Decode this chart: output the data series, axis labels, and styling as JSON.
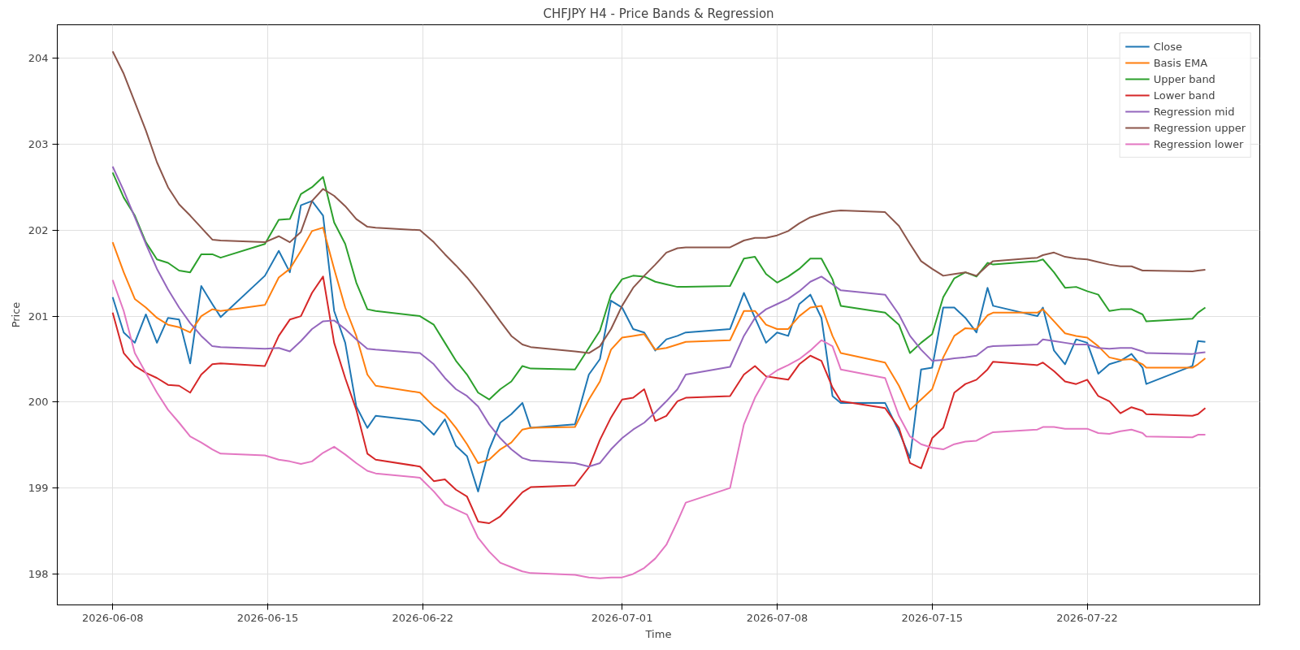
{
  "chart_data": {
    "type": "line",
    "title": "CHFJPY H4 - Price Bands & Regression",
    "xlabel": "Time",
    "ylabel": "Price",
    "x": [
      "2026-06-08T00:00",
      "2026-06-08T12:00",
      "2026-06-09T00:00",
      "2026-06-09T12:00",
      "2026-06-10T00:00",
      "2026-06-10T12:00",
      "2026-06-11T00:00",
      "2026-06-11T12:00",
      "2026-06-12T00:00",
      "2026-06-12T12:00",
      "2026-06-12T21:00",
      "2026-06-14T21:00",
      "2026-06-15T12:00",
      "2026-06-16T00:00",
      "2026-06-16T12:00",
      "2026-06-17T00:00",
      "2026-06-17T12:00",
      "2026-06-18T00:00",
      "2026-06-18T12:00",
      "2026-06-19T00:00",
      "2026-06-19T12:00",
      "2026-06-19T21:00",
      "2026-06-21T21:00",
      "2026-06-22T12:00",
      "2026-06-23T00:00",
      "2026-06-23T12:00",
      "2026-06-24T00:00",
      "2026-06-24T12:00",
      "2026-06-25T00:00",
      "2026-06-25T12:00",
      "2026-06-26T00:00",
      "2026-06-26T12:00",
      "2026-06-26T21:00",
      "2026-06-28T21:00",
      "2026-06-29T12:00",
      "2026-06-30T00:00",
      "2026-06-30T12:00",
      "2026-07-01T00:00",
      "2026-07-01T12:00",
      "2026-07-02T00:00",
      "2026-07-02T12:00",
      "2026-07-03T00:00",
      "2026-07-03T12:00",
      "2026-07-03T21:00",
      "2026-07-05T21:00",
      "2026-07-06T12:00",
      "2026-07-07T00:00",
      "2026-07-07T12:00",
      "2026-07-08T00:00",
      "2026-07-08T12:00",
      "2026-07-09T00:00",
      "2026-07-09T12:00",
      "2026-07-10T00:00",
      "2026-07-10T12:00",
      "2026-07-10T21:00",
      "2026-07-12T21:00",
      "2026-07-13T12:00",
      "2026-07-14T00:00",
      "2026-07-14T12:00",
      "2026-07-15T00:00",
      "2026-07-15T12:00",
      "2026-07-16T00:00",
      "2026-07-16T12:00",
      "2026-07-17T00:00",
      "2026-07-17T12:00",
      "2026-07-17T18:00",
      "2026-07-19T18:00",
      "2026-07-20T00:00",
      "2026-07-20T12:00",
      "2026-07-21T00:00",
      "2026-07-21T12:00",
      "2026-07-22T00:00",
      "2026-07-22T12:00",
      "2026-07-23T00:00",
      "2026-07-23T12:00",
      "2026-07-24T00:00",
      "2026-07-24T12:00",
      "2026-07-24T16:00",
      "2026-07-26T18:00",
      "2026-07-27T00:00",
      "2026-07-27T08:00"
    ],
    "series": [
      {
        "name": "Close",
        "color": "#1f77b4",
        "values": [
          201.22,
          200.81,
          200.69,
          201.02,
          200.69,
          200.98,
          200.96,
          200.45,
          201.35,
          201.14,
          200.99,
          201.47,
          201.76,
          201.51,
          202.29,
          202.34,
          202.17,
          201.06,
          200.69,
          199.95,
          199.7,
          199.84,
          199.78,
          199.62,
          199.8,
          199.49,
          199.37,
          198.96,
          199.45,
          199.76,
          199.86,
          199.99,
          199.7,
          199.74,
          200.32,
          200.5,
          201.18,
          201.1,
          200.85,
          200.81,
          200.6,
          200.73,
          200.77,
          200.81,
          200.85,
          201.27,
          200.98,
          200.69,
          200.81,
          200.77,
          201.14,
          201.25,
          200.98,
          200.07,
          199.99,
          199.99,
          199.66,
          199.35,
          200.38,
          200.4,
          201.1,
          201.1,
          200.98,
          200.81,
          201.33,
          201.12,
          201.0,
          201.1,
          200.6,
          200.44,
          200.73,
          200.69,
          200.33,
          200.44,
          200.48,
          200.56,
          200.4,
          200.21,
          200.42,
          200.71,
          200.7
        ]
      },
      {
        "name": "Basis EMA",
        "color": "#ff7f0e",
        "values": [
          201.86,
          201.51,
          201.2,
          201.1,
          200.98,
          200.9,
          200.87,
          200.81,
          201.0,
          201.08,
          201.06,
          201.13,
          201.45,
          201.55,
          201.76,
          201.99,
          202.03,
          201.55,
          201.1,
          200.77,
          200.32,
          200.19,
          200.11,
          199.95,
          199.86,
          199.7,
          199.51,
          199.29,
          199.33,
          199.45,
          199.53,
          199.68,
          199.7,
          199.71,
          200.03,
          200.24,
          200.61,
          200.75,
          200.77,
          200.79,
          200.61,
          200.63,
          200.67,
          200.7,
          200.72,
          201.06,
          201.06,
          200.9,
          200.85,
          200.85,
          201.0,
          201.1,
          201.12,
          200.77,
          200.57,
          200.46,
          200.19,
          199.91,
          200.03,
          200.15,
          200.52,
          200.77,
          200.86,
          200.85,
          201.01,
          201.04,
          201.04,
          201.08,
          200.94,
          200.8,
          200.77,
          200.75,
          200.65,
          200.52,
          200.49,
          200.5,
          200.44,
          200.4,
          200.4,
          200.44,
          200.51
        ]
      },
      {
        "name": "Upper band",
        "color": "#2ca02c",
        "values": [
          202.67,
          202.38,
          202.17,
          201.86,
          201.66,
          201.62,
          201.53,
          201.51,
          201.72,
          201.72,
          201.68,
          201.84,
          202.12,
          202.13,
          202.42,
          202.5,
          202.62,
          202.09,
          201.84,
          201.39,
          201.08,
          201.06,
          201.0,
          200.9,
          200.69,
          200.48,
          200.32,
          200.11,
          200.03,
          200.15,
          200.24,
          200.42,
          200.39,
          200.38,
          200.63,
          200.83,
          201.25,
          201.43,
          201.47,
          201.46,
          201.4,
          201.37,
          201.34,
          201.34,
          201.35,
          201.67,
          201.69,
          201.49,
          201.39,
          201.46,
          201.55,
          201.67,
          201.67,
          201.43,
          201.12,
          201.04,
          200.9,
          200.57,
          200.69,
          200.79,
          201.22,
          201.44,
          201.51,
          201.46,
          201.62,
          201.6,
          201.64,
          201.66,
          201.51,
          201.33,
          201.34,
          201.29,
          201.25,
          201.06,
          201.08,
          201.08,
          201.02,
          200.94,
          200.97,
          201.04,
          201.1
        ]
      },
      {
        "name": "Lower band",
        "color": "#d62728",
        "values": [
          201.04,
          200.57,
          200.42,
          200.34,
          200.28,
          200.2,
          200.19,
          200.11,
          200.32,
          200.44,
          200.45,
          200.42,
          200.77,
          200.96,
          201.0,
          201.27,
          201.46,
          200.69,
          200.28,
          199.91,
          199.4,
          199.33,
          199.25,
          199.08,
          199.1,
          198.98,
          198.9,
          198.61,
          198.59,
          198.67,
          198.81,
          198.95,
          199.01,
          199.03,
          199.24,
          199.56,
          199.82,
          200.03,
          200.05,
          200.15,
          199.78,
          199.84,
          200.01,
          200.05,
          200.07,
          200.32,
          200.42,
          200.3,
          200.28,
          200.26,
          200.44,
          200.54,
          200.48,
          200.17,
          200.01,
          199.93,
          199.7,
          199.29,
          199.23,
          199.58,
          199.7,
          200.11,
          200.21,
          200.26,
          200.38,
          200.47,
          200.43,
          200.46,
          200.36,
          200.24,
          200.21,
          200.26,
          200.07,
          200.01,
          199.87,
          199.94,
          199.9,
          199.86,
          199.84,
          199.86,
          199.93
        ]
      },
      {
        "name": "Regression mid",
        "color": "#9467bd",
        "values": [
          202.74,
          202.46,
          202.15,
          201.84,
          201.55,
          201.31,
          201.1,
          200.92,
          200.77,
          200.65,
          200.64,
          200.62,
          200.63,
          200.59,
          200.71,
          200.85,
          200.94,
          200.95,
          200.85,
          200.73,
          200.62,
          200.61,
          200.57,
          200.44,
          200.28,
          200.15,
          200.07,
          199.95,
          199.74,
          199.58,
          199.45,
          199.35,
          199.32,
          199.29,
          199.25,
          199.29,
          199.45,
          199.58,
          199.68,
          199.76,
          199.88,
          200.01,
          200.15,
          200.32,
          200.41,
          200.77,
          200.98,
          201.08,
          201.14,
          201.2,
          201.29,
          201.4,
          201.46,
          201.37,
          201.3,
          201.25,
          201.02,
          200.77,
          200.61,
          200.48,
          200.49,
          200.51,
          200.52,
          200.54,
          200.64,
          200.65,
          200.67,
          200.73,
          200.71,
          200.69,
          200.67,
          200.67,
          200.63,
          200.62,
          200.63,
          200.63,
          200.59,
          200.57,
          200.56,
          200.57,
          200.58
        ]
      },
      {
        "name": "Regression upper",
        "color": "#8c564b",
        "values": [
          204.08,
          203.82,
          203.49,
          203.16,
          202.79,
          202.5,
          202.3,
          202.17,
          202.03,
          201.89,
          201.88,
          201.86,
          201.93,
          201.86,
          201.98,
          202.34,
          202.48,
          202.4,
          202.28,
          202.13,
          202.04,
          202.03,
          202.0,
          201.86,
          201.72,
          201.59,
          201.45,
          201.29,
          201.12,
          200.94,
          200.77,
          200.67,
          200.64,
          200.59,
          200.57,
          200.65,
          200.85,
          201.12,
          201.33,
          201.47,
          201.6,
          201.74,
          201.79,
          201.8,
          201.8,
          201.88,
          201.91,
          201.91,
          201.94,
          201.99,
          202.08,
          202.15,
          202.19,
          202.22,
          202.23,
          202.21,
          202.05,
          201.84,
          201.64,
          201.55,
          201.47,
          201.49,
          201.51,
          201.47,
          201.59,
          201.64,
          201.68,
          201.71,
          201.74,
          201.69,
          201.67,
          201.66,
          201.63,
          201.6,
          201.58,
          201.58,
          201.53,
          201.53,
          201.52,
          201.53,
          201.54
        ]
      },
      {
        "name": "Regression lower",
        "color": "#e377c2",
        "values": [
          201.42,
          201.06,
          200.57,
          200.34,
          200.11,
          199.91,
          199.76,
          199.6,
          199.53,
          199.45,
          199.4,
          199.38,
          199.33,
          199.31,
          199.28,
          199.31,
          199.41,
          199.48,
          199.39,
          199.29,
          199.2,
          199.17,
          199.12,
          198.96,
          198.81,
          198.75,
          198.69,
          198.42,
          198.26,
          198.13,
          198.08,
          198.03,
          198.01,
          197.99,
          197.96,
          197.95,
          197.96,
          197.96,
          198.0,
          198.07,
          198.18,
          198.34,
          198.61,
          198.83,
          199.0,
          199.74,
          200.05,
          200.28,
          200.37,
          200.43,
          200.5,
          200.6,
          200.72,
          200.65,
          200.38,
          200.28,
          199.84,
          199.6,
          199.51,
          199.47,
          199.45,
          199.51,
          199.54,
          199.55,
          199.62,
          199.65,
          199.68,
          199.71,
          199.71,
          199.69,
          199.69,
          199.69,
          199.64,
          199.63,
          199.66,
          199.68,
          199.64,
          199.6,
          199.59,
          199.62,
          199.62
        ]
      }
    ],
    "xlim": [
      "2026-06-05T12:00",
      "2026-07-29T19:00"
    ],
    "xticks": [
      "2026-06-08",
      "2026-06-15",
      "2026-06-22",
      "2026-07-01",
      "2026-07-08",
      "2026-07-15",
      "2026-07-22"
    ],
    "ylim": [
      197.64,
      204.39
    ],
    "yticks": [
      198,
      199,
      200,
      201,
      202,
      203,
      204
    ],
    "grid": true,
    "legend": "top right",
    "line_style": "solid",
    "marker": "none"
  }
}
